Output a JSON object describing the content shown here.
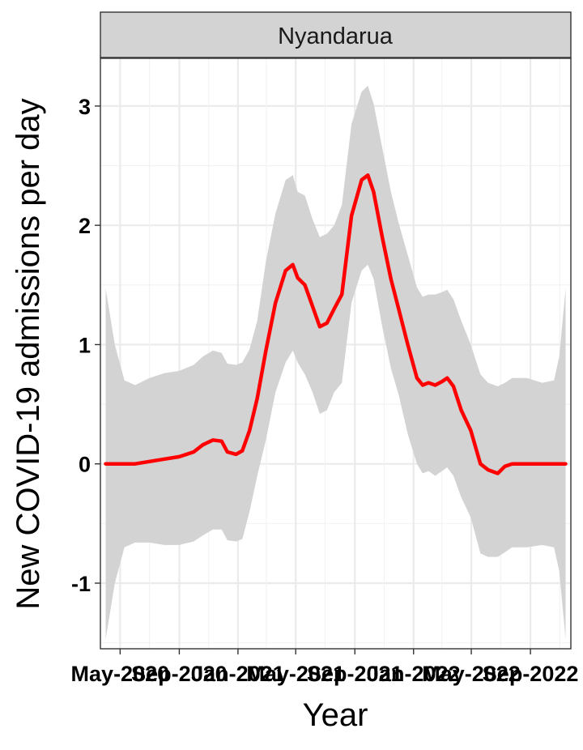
{
  "chart_data": {
    "type": "line",
    "title": "",
    "facet_label": "Nyandarua",
    "xlabel": "Year",
    "ylabel": "New COVID-19 admissions per day",
    "x_tick_labels": [
      "May-2020",
      "Sep-2020",
      "Jan-2021",
      "May-2021",
      "Sep-2021",
      "Jan-2022",
      "May-2022",
      "Sep-2022"
    ],
    "y_ticks": [
      -1,
      0,
      1,
      2,
      3
    ],
    "ylim": [
      -1.55,
      3.4
    ],
    "xlim": [
      "2020-03-21",
      "2022-11-24"
    ],
    "grid": true,
    "series": [
      {
        "color": "#ff0000",
        "fill_color": "#d3d3d3",
        "points": [
          {
            "x": "2020-04-01",
            "y": 0.0,
            "lo": -1.47,
            "hi": 1.47
          },
          {
            "x": "2020-04-20",
            "y": 0.0,
            "lo": -1.0,
            "hi": 1.0
          },
          {
            "x": "2020-05-10",
            "y": 0.0,
            "lo": -0.7,
            "hi": 0.7
          },
          {
            "x": "2020-06-01",
            "y": 0.0,
            "lo": -0.66,
            "hi": 0.66
          },
          {
            "x": "2020-07-01",
            "y": 0.02,
            "lo": -0.66,
            "hi": 0.72
          },
          {
            "x": "2020-08-01",
            "y": 0.04,
            "lo": -0.68,
            "hi": 0.76
          },
          {
            "x": "2020-09-01",
            "y": 0.06,
            "lo": -0.68,
            "hi": 0.78
          },
          {
            "x": "2020-10-01",
            "y": 0.1,
            "lo": -0.65,
            "hi": 0.83
          },
          {
            "x": "2020-10-20",
            "y": 0.16,
            "lo": -0.6,
            "hi": 0.9
          },
          {
            "x": "2020-11-10",
            "y": 0.2,
            "lo": -0.55,
            "hi": 0.95
          },
          {
            "x": "2020-11-28",
            "y": 0.19,
            "lo": -0.55,
            "hi": 0.93
          },
          {
            "x": "2020-12-10",
            "y": 0.1,
            "lo": -0.64,
            "hi": 0.84
          },
          {
            "x": "2020-12-28",
            "y": 0.08,
            "lo": -0.65,
            "hi": 0.83
          },
          {
            "x": "2021-01-10",
            "y": 0.11,
            "lo": -0.63,
            "hi": 0.85
          },
          {
            "x": "2021-01-25",
            "y": 0.28,
            "lo": -0.4,
            "hi": 0.96
          },
          {
            "x": "2021-02-10",
            "y": 0.55,
            "lo": -0.1,
            "hi": 1.2
          },
          {
            "x": "2021-02-28",
            "y": 0.95,
            "lo": 0.2,
            "hi": 1.7
          },
          {
            "x": "2021-03-20",
            "y": 1.35,
            "lo": 0.6,
            "hi": 2.1
          },
          {
            "x": "2021-04-10",
            "y": 1.62,
            "lo": 0.85,
            "hi": 2.38
          },
          {
            "x": "2021-04-25",
            "y": 1.67,
            "lo": 0.95,
            "hi": 2.42
          },
          {
            "x": "2021-05-05",
            "y": 1.56,
            "lo": 0.85,
            "hi": 2.28
          },
          {
            "x": "2021-05-20",
            "y": 1.5,
            "lo": 0.75,
            "hi": 2.25
          },
          {
            "x": "2021-06-05",
            "y": 1.32,
            "lo": 0.6,
            "hi": 2.05
          },
          {
            "x": "2021-06-20",
            "y": 1.15,
            "lo": 0.42,
            "hi": 1.9
          },
          {
            "x": "2021-07-05",
            "y": 1.18,
            "lo": 0.45,
            "hi": 1.93
          },
          {
            "x": "2021-07-20",
            "y": 1.3,
            "lo": 0.6,
            "hi": 2.0
          },
          {
            "x": "2021-08-05",
            "y": 1.42,
            "lo": 0.68,
            "hi": 2.17
          },
          {
            "x": "2021-08-25",
            "y": 2.08,
            "lo": 1.35,
            "hi": 2.85
          },
          {
            "x": "2021-09-15",
            "y": 2.38,
            "lo": 1.62,
            "hi": 3.12
          },
          {
            "x": "2021-09-28",
            "y": 2.42,
            "lo": 1.67,
            "hi": 3.17
          },
          {
            "x": "2021-10-10",
            "y": 2.28,
            "lo": 1.55,
            "hi": 3.02
          },
          {
            "x": "2021-10-28",
            "y": 1.9,
            "lo": 1.15,
            "hi": 2.65
          },
          {
            "x": "2021-11-15",
            "y": 1.55,
            "lo": 0.8,
            "hi": 2.28
          },
          {
            "x": "2021-12-01",
            "y": 1.3,
            "lo": 0.58,
            "hi": 2.02
          },
          {
            "x": "2021-12-20",
            "y": 1.0,
            "lo": 0.25,
            "hi": 1.75
          },
          {
            "x": "2022-01-08",
            "y": 0.72,
            "lo": 0.0,
            "hi": 1.48
          },
          {
            "x": "2022-01-20",
            "y": 0.66,
            "lo": -0.08,
            "hi": 1.4
          },
          {
            "x": "2022-02-01",
            "y": 0.68,
            "lo": -0.06,
            "hi": 1.42
          },
          {
            "x": "2022-02-15",
            "y": 0.66,
            "lo": -0.1,
            "hi": 1.42
          },
          {
            "x": "2022-03-01",
            "y": 0.69,
            "lo": -0.06,
            "hi": 1.44
          },
          {
            "x": "2022-03-12",
            "y": 0.72,
            "lo": -0.03,
            "hi": 1.46
          },
          {
            "x": "2022-03-25",
            "y": 0.65,
            "lo": -0.1,
            "hi": 1.38
          },
          {
            "x": "2022-04-10",
            "y": 0.45,
            "lo": -0.28,
            "hi": 1.2
          },
          {
            "x": "2022-04-30",
            "y": 0.28,
            "lo": -0.45,
            "hi": 1.0
          },
          {
            "x": "2022-05-20",
            "y": 0.0,
            "lo": -0.75,
            "hi": 0.75
          },
          {
            "x": "2022-06-05",
            "y": -0.05,
            "lo": -0.78,
            "hi": 0.68
          },
          {
            "x": "2022-06-25",
            "y": -0.08,
            "lo": -0.78,
            "hi": 0.65
          },
          {
            "x": "2022-07-10",
            "y": -0.02,
            "lo": -0.74,
            "hi": 0.68
          },
          {
            "x": "2022-07-25",
            "y": 0.0,
            "lo": -0.7,
            "hi": 0.72
          },
          {
            "x": "2022-08-25",
            "y": 0.0,
            "lo": -0.7,
            "hi": 0.72
          },
          {
            "x": "2022-09-25",
            "y": 0.0,
            "lo": -0.68,
            "hi": 0.68
          },
          {
            "x": "2022-10-20",
            "y": 0.0,
            "lo": -0.7,
            "hi": 0.7
          },
          {
            "x": "2022-10-31",
            "y": 0.0,
            "lo": -0.9,
            "hi": 0.9
          },
          {
            "x": "2022-11-13",
            "y": 0.0,
            "lo": -1.47,
            "hi": 1.47
          }
        ]
      }
    ]
  }
}
